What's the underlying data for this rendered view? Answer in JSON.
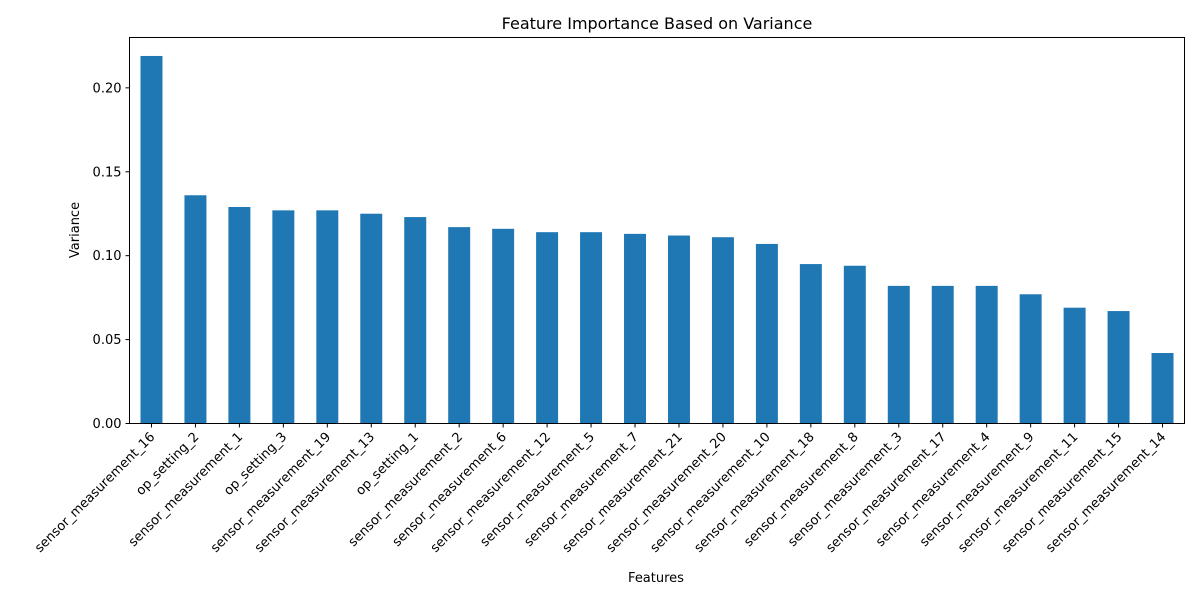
{
  "chart_data": {
    "type": "bar",
    "title": "Feature Importance Based on Variance",
    "xlabel": "Features",
    "ylabel": "Variance",
    "ylim": [
      0,
      0.23
    ],
    "yticks": [
      "0.00",
      "0.05",
      "0.10",
      "0.15",
      "0.20"
    ],
    "yticks_values": [
      0,
      0.05,
      0.1,
      0.15,
      0.2
    ],
    "grid": false,
    "bar_color": "#1f77b4",
    "categories": [
      "sensor_measurement_16",
      "op_setting_2",
      "sensor_measurement_1",
      "op_setting_3",
      "sensor_measurement_19",
      "sensor_measurement_13",
      "op_setting_1",
      "sensor_measurement_2",
      "sensor_measurement_6",
      "sensor_measurement_12",
      "sensor_measurement_5",
      "sensor_measurement_7",
      "sensor_measurement_21",
      "sensor_measurement_20",
      "sensor_measurement_10",
      "sensor_measurement_18",
      "sensor_measurement_8",
      "sensor_measurement_3",
      "sensor_measurement_17",
      "sensor_measurement_4",
      "sensor_measurement_9",
      "sensor_measurement_11",
      "sensor_measurement_15",
      "sensor_measurement_14"
    ],
    "values": [
      0.219,
      0.136,
      0.129,
      0.127,
      0.127,
      0.125,
      0.123,
      0.117,
      0.116,
      0.114,
      0.114,
      0.113,
      0.112,
      0.111,
      0.107,
      0.095,
      0.094,
      0.082,
      0.082,
      0.082,
      0.077,
      0.069,
      0.067,
      0.042
    ]
  }
}
